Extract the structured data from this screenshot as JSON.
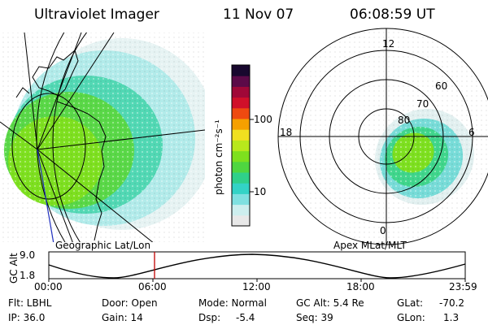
{
  "header": {
    "instrument": "Ultraviolet Imager",
    "date": "11 Nov 07",
    "time": "06:08:59 UT"
  },
  "colorbar": {
    "label": "photon cm⁻²s⁻¹",
    "ticks": [
      "100",
      "10"
    ],
    "colors": [
      "#e8e8e8",
      "#cdeeee",
      "#7fe0e0",
      "#33d3c6",
      "#2fd08a",
      "#4fd640",
      "#7ee01e",
      "#b8e81c",
      "#f0e020",
      "#f5a000",
      "#ee4a10",
      "#d0102a",
      "#a00838",
      "#5c0a48",
      "#18082e"
    ]
  },
  "left_map": {
    "caption": "Geographic Lat/Lon"
  },
  "polar_plot": {
    "caption": "Apex MLat/MLT",
    "mlt_labels": [
      "12",
      "18",
      "6",
      "0"
    ],
    "mlat_labels": [
      "60",
      "70",
      "80"
    ]
  },
  "altitude_plot": {
    "ylabel": "GC Alt",
    "yticks": [
      "9.0",
      "1.8"
    ],
    "xticks": [
      "00:00",
      "06:00",
      "12:00",
      "18:00",
      "23:59"
    ],
    "marker_time": "06:08:59",
    "marker_color": "#c00000"
  },
  "status": {
    "flt": "Flt: LBHL",
    "ip": "IP: 36.0",
    "door": "Door: Open",
    "gain": "Gain: 14",
    "mode": "Mode: Normal",
    "dsp_label": "Dsp:",
    "dsp_value": "-5.4",
    "gc_alt": "GC Alt: 5.4 Re",
    "seq": "Seq: 39",
    "glat_label": "GLat:",
    "glat_value": "-70.2",
    "glon_label": "GLon:",
    "glon_value": "1.3"
  }
}
